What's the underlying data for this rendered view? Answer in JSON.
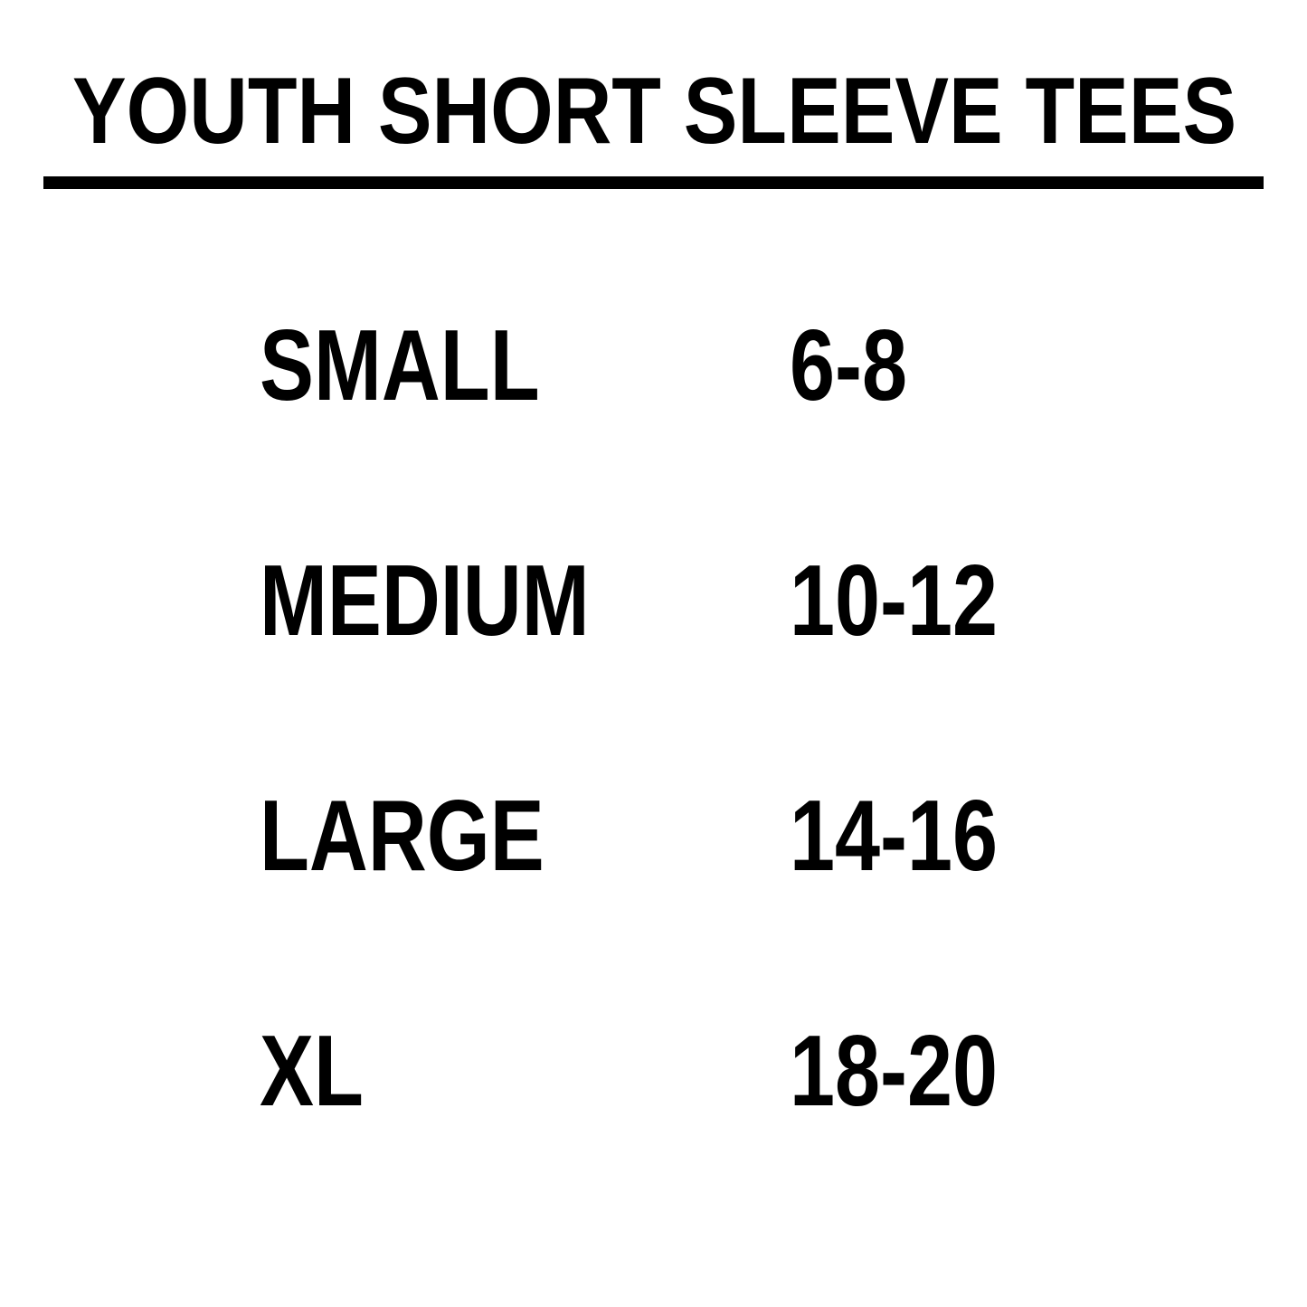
{
  "title": "YOUTH SHORT SLEEVE TEES",
  "text_color": "#000000",
  "background_color": "#ffffff",
  "rows": [
    {
      "size": "SMALL",
      "range": "6-8"
    },
    {
      "size": "MEDIUM",
      "range": "10-12"
    },
    {
      "size": "LARGE",
      "range": "14-16"
    },
    {
      "size": "XL",
      "range": "18-20"
    }
  ]
}
